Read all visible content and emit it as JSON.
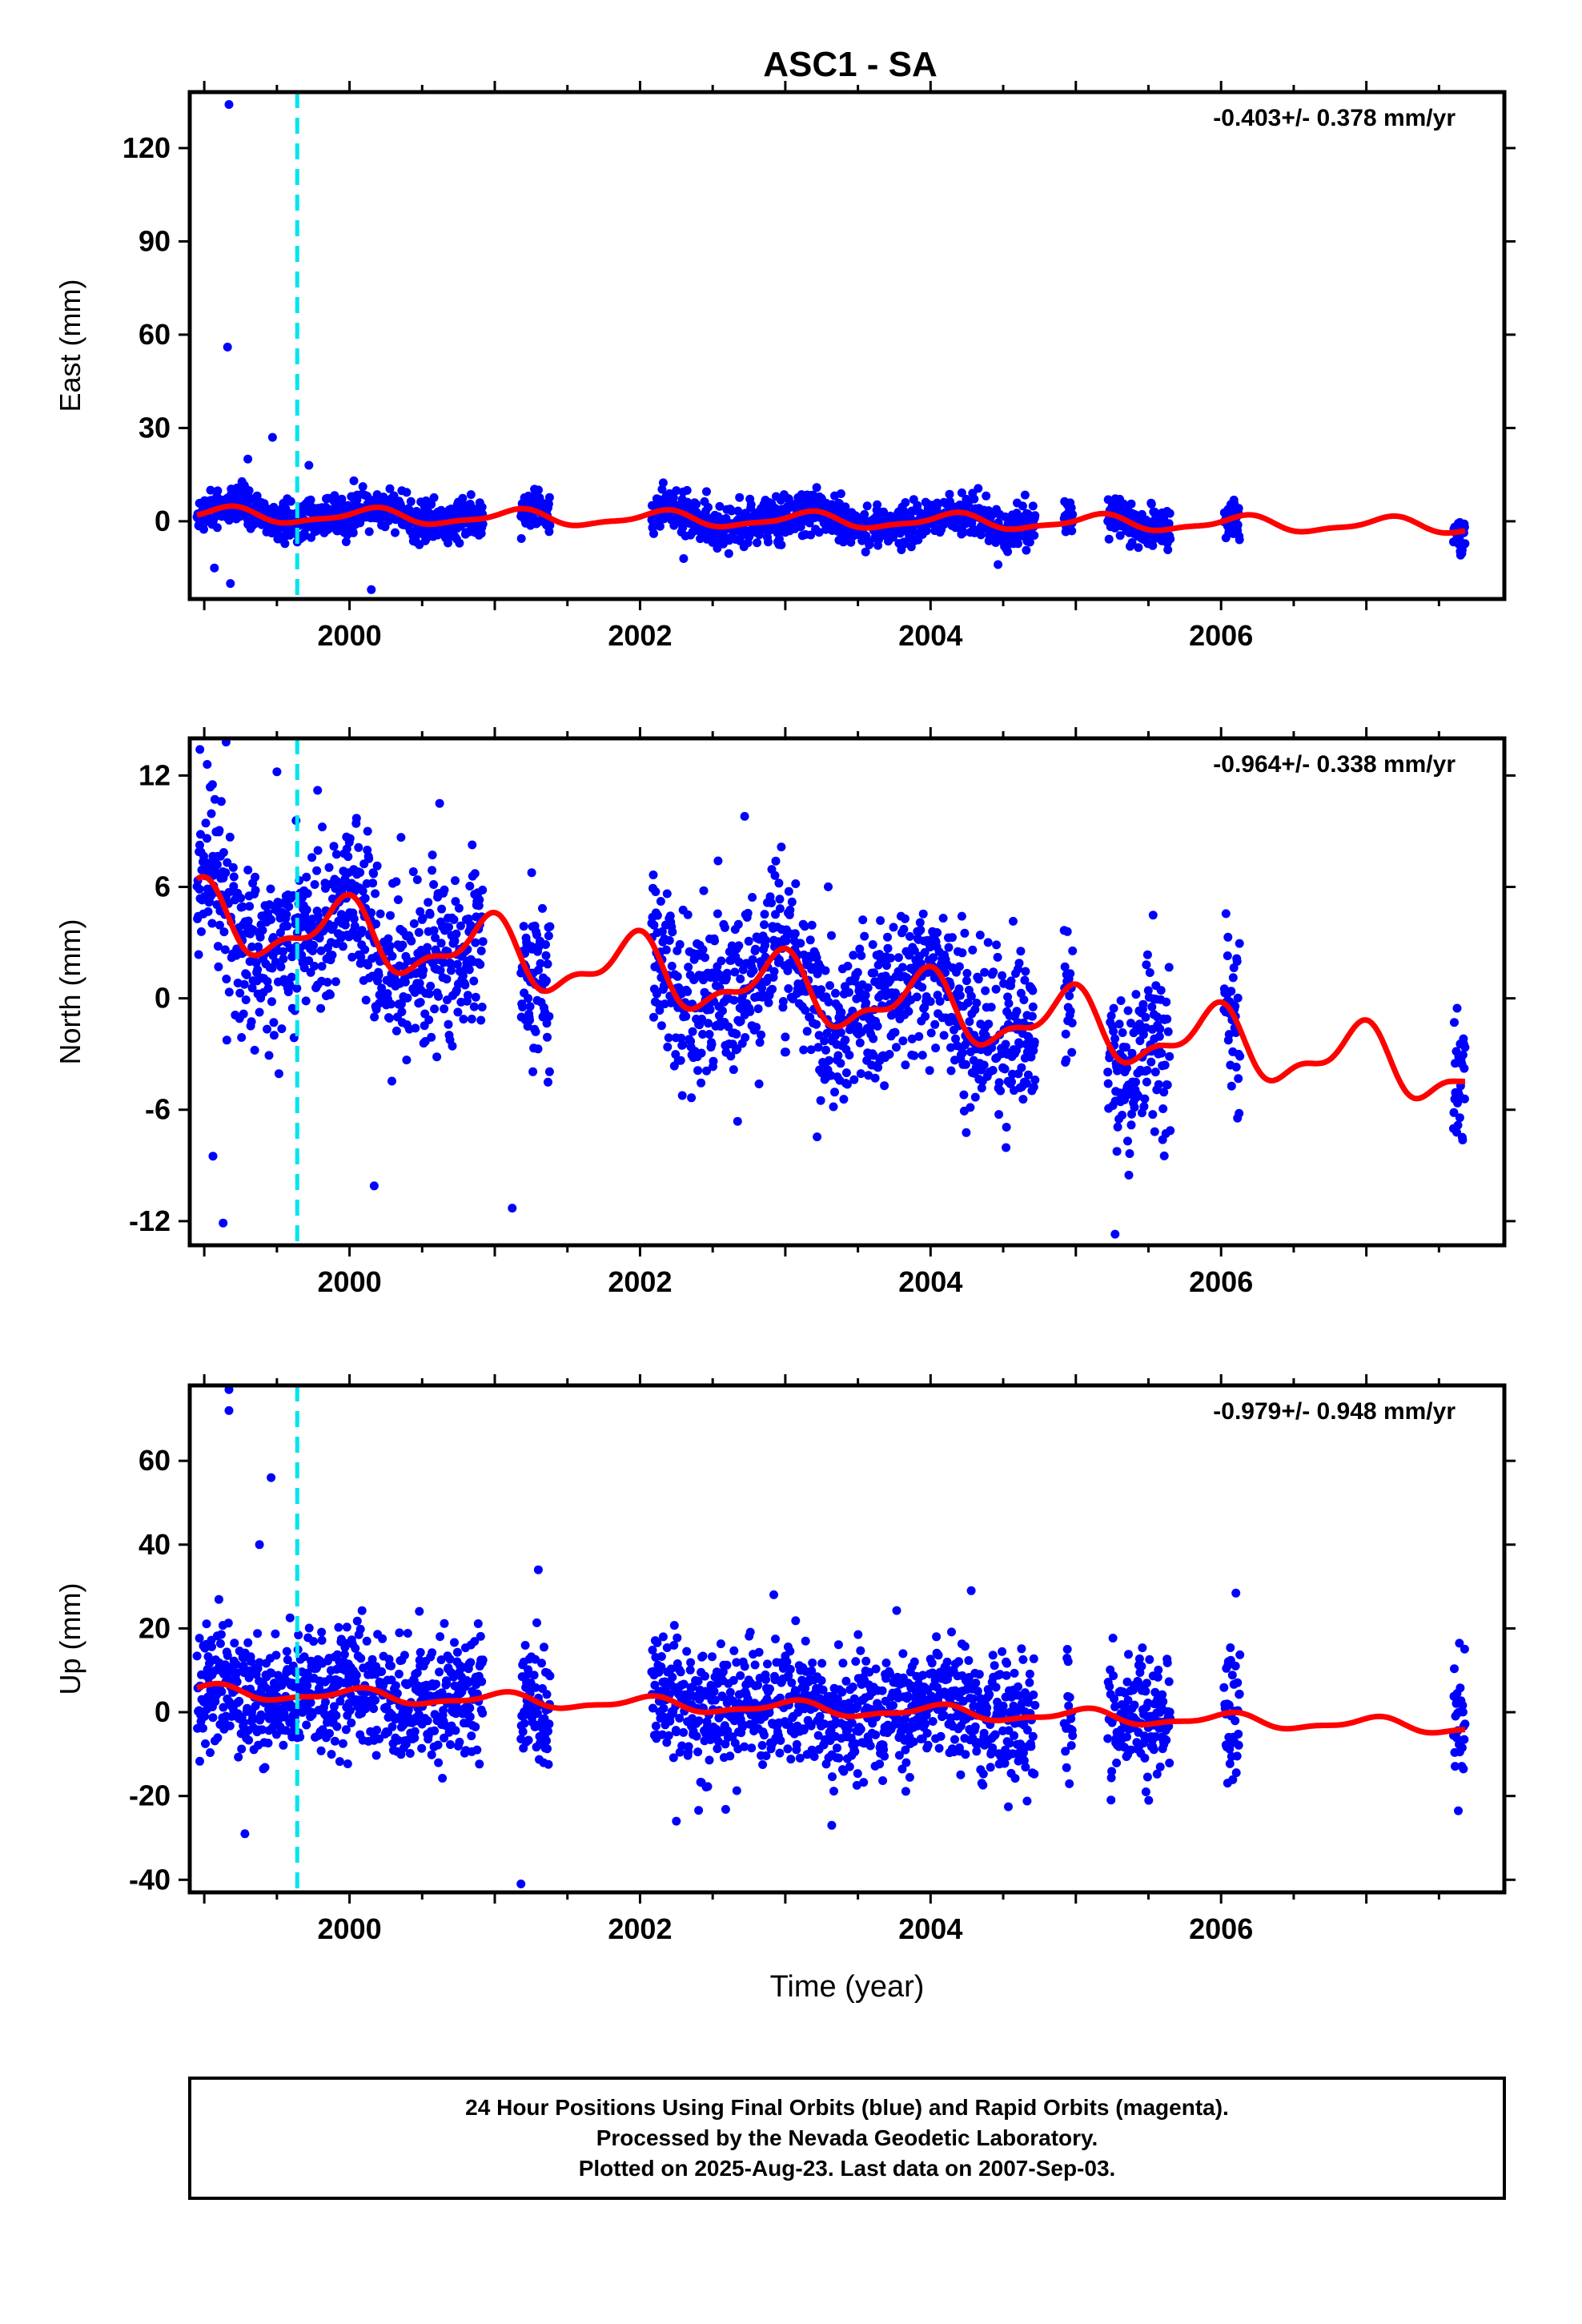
{
  "title": "ASC1 - SA",
  "footer": {
    "line1": "24 Hour Positions Using Final Orbits (blue) and Rapid Orbits (magenta).",
    "line2": "Processed by the Nevada Geodetic Laboratory.",
    "line3": "Plotted on 2025-Aug-23. Last data on 2007-Sep-03."
  },
  "colors": {
    "points": "#0000ff",
    "model": "#ff0000",
    "event_line": "#00e5ee",
    "frame": "#000000"
  },
  "chart_data": [
    {
      "type": "scatter",
      "component": "East",
      "ylabel": "East (mm)",
      "xlabel": "",
      "rate_label": "-0.403+/- 0.378 mm/yr",
      "xlim": [
        1998.9,
        2007.95
      ],
      "ylim": [
        -25,
        138
      ],
      "yticks": [
        0,
        30,
        60,
        90,
        120
      ],
      "xticks": [
        2000,
        2002,
        2004,
        2006
      ],
      "event_line_x": 1999.64,
      "data_segments": [
        [
          1998.95,
          2000.92
        ],
        [
          2001.18,
          2001.38
        ],
        [
          2002.08,
          2004.72
        ],
        [
          2004.92,
          2004.98
        ],
        [
          2005.22,
          2005.65
        ],
        [
          2006.02,
          2006.13
        ],
        [
          2007.6,
          2007.68
        ]
      ],
      "model": {
        "trend": -0.403,
        "amp1": 2.3,
        "amp2": 0.8,
        "phase1": 0.1,
        "phase2": 0.4,
        "offset": 0.4,
        "center": 2003.0
      },
      "noise_sd": 3.2,
      "outliers": [
        [
          1999.17,
          134
        ],
        [
          1999.16,
          56
        ],
        [
          1999.47,
          27
        ],
        [
          1999.3,
          20
        ],
        [
          1999.72,
          18
        ],
        [
          1999.07,
          -15
        ],
        [
          1999.18,
          -20
        ],
        [
          2000.15,
          -22
        ],
        [
          2000.03,
          13
        ],
        [
          2002.3,
          -12
        ]
      ]
    },
    {
      "type": "scatter",
      "component": "North",
      "ylabel": "North (mm)",
      "xlabel": "",
      "rate_label": "-0.964+/- 0.338 mm/yr",
      "xlim": [
        1998.9,
        2007.95
      ],
      "ylim": [
        -13.3,
        14.0
      ],
      "yticks": [
        -12,
        -6,
        0,
        6,
        12
      ],
      "xticks": [
        2000,
        2002,
        2004,
        2006
      ],
      "event_line_x": 1999.64,
      "data_segments": [
        [
          1998.95,
          2000.92
        ],
        [
          2001.18,
          2001.38
        ],
        [
          2002.08,
          2004.72
        ],
        [
          2004.92,
          2004.98
        ],
        [
          2005.22,
          2005.65
        ],
        [
          2006.02,
          2006.13
        ],
        [
          2007.6,
          2007.68
        ]
      ],
      "model": {
        "trend": -0.964,
        "amp1": 1.6,
        "amp2": 0.7,
        "phase1": 0.3,
        "phase2": 0.1,
        "offset": 0.5,
        "center": 2003.0
      },
      "noise_sd": 2.2,
      "outliers": [
        [
          1998.97,
          13.4
        ],
        [
          1999.15,
          13.8
        ],
        [
          1999.02,
          12.6
        ],
        [
          1999.5,
          12.2
        ],
        [
          1999.78,
          11.2
        ],
        [
          2000.62,
          10.5
        ],
        [
          2002.72,
          9.8
        ],
        [
          1999.13,
          -12.1
        ],
        [
          2001.12,
          -11.3
        ],
        [
          2005.27,
          -12.7
        ],
        [
          2000.17,
          -10.1
        ],
        [
          1999.06,
          -8.5
        ]
      ]
    },
    {
      "type": "scatter",
      "component": "Up",
      "ylabel": "Up (mm)",
      "xlabel": "Time (year)",
      "rate_label": "-0.979+/- 0.948 mm/yr",
      "xlim": [
        1998.9,
        2007.95
      ],
      "ylim": [
        -43,
        78
      ],
      "yticks": [
        -40,
        -20,
        0,
        20,
        40,
        60
      ],
      "xticks": [
        2000,
        2002,
        2004,
        2006
      ],
      "event_line_x": 1999.64,
      "data_segments": [
        [
          1998.95,
          2000.92
        ],
        [
          2001.18,
          2001.38
        ],
        [
          2002.08,
          2004.72
        ],
        [
          2004.92,
          2004.98
        ],
        [
          2005.22,
          2005.65
        ],
        [
          2006.02,
          2006.13
        ],
        [
          2007.6,
          2007.68
        ]
      ],
      "model": {
        "trend": -0.979,
        "amp1": 1.5,
        "amp2": 0.6,
        "phase1": 0.2,
        "phase2": 0.5,
        "offset": 1.0,
        "center": 2003.0
      },
      "noise_sd": 7.5,
      "outliers": [
        [
          1999.17,
          77
        ],
        [
          1999.17,
          72
        ],
        [
          1999.46,
          56
        ],
        [
          1999.38,
          40
        ],
        [
          2001.3,
          34
        ],
        [
          2004.28,
          29
        ],
        [
          2001.18,
          -41
        ],
        [
          1999.28,
          -29
        ],
        [
          2003.32,
          -27
        ],
        [
          2002.25,
          -26
        ]
      ]
    }
  ]
}
